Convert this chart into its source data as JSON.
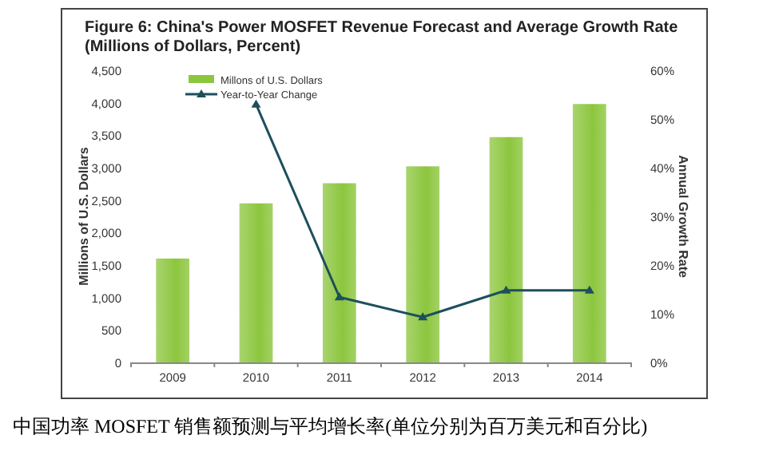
{
  "chart_data": {
    "type": "bar",
    "title": "Figure 6: China's Power MOSFET Revenue Forecast and Average Growth Rate (Millions of Dollars, Percent)",
    "categories": [
      "2009",
      "2010",
      "2011",
      "2012",
      "2013",
      "2014"
    ],
    "series": [
      {
        "name": "Millons of U.S. Dollars",
        "color": "#8cc63e",
        "values": [
          1600,
          2450,
          2760,
          3020,
          3470,
          3980
        ]
      },
      {
        "name": "Year-to-Year Change",
        "type": "line",
        "axis": "y2",
        "color": "#1d4f5c",
        "marker": "triangle",
        "values": [
          null,
          53,
          13.4,
          9.3,
          14.8,
          14.8
        ]
      }
    ],
    "ylabel": "Millions of U.S. Dollars",
    "y2label": "Annual Growth Rate",
    "ylim": [
      0,
      4500
    ],
    "yticks": [
      0,
      500,
      {
        "value": 1000,
        "label": "1,000"
      },
      {
        "value": 1500,
        "label": "1,500"
      },
      {
        "value": 2000,
        "label": "2,000"
      },
      {
        "value": 2500,
        "label": "2,500"
      },
      {
        "value": 3000,
        "label": "3,000"
      },
      {
        "value": 3500,
        "label": "3,500"
      },
      {
        "value": 4000,
        "label": "4,000"
      },
      {
        "value": 4500,
        "label": "4,500"
      }
    ],
    "y2lim": [
      0,
      60
    ],
    "y2ticks": [
      {
        "value": 0,
        "label": "0%"
      },
      {
        "value": 10,
        "label": "10%"
      },
      {
        "value": 20,
        "label": "20%"
      },
      {
        "value": 30,
        "label": "30%"
      },
      {
        "value": 40,
        "label": "40%"
      },
      {
        "value": 50,
        "label": "50%"
      },
      {
        "value": 60,
        "label": "60%"
      }
    ],
    "legend": "top left",
    "grid": false,
    "annotations": [
      "中国功率 MOSFET 销售额预测与平均增长率(单位分别为百万美元和百分比)"
    ]
  }
}
